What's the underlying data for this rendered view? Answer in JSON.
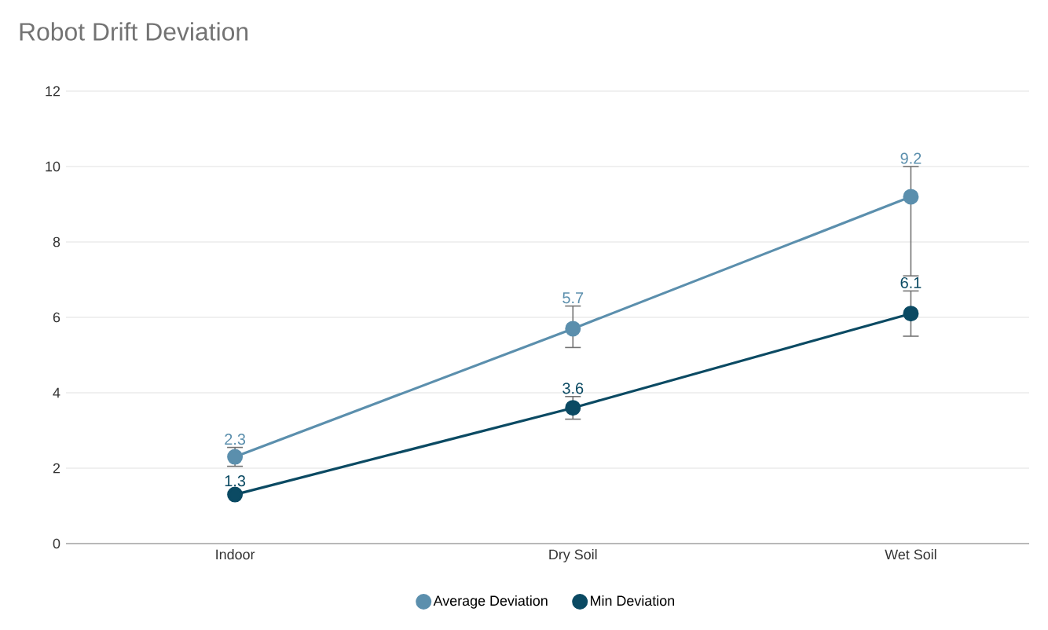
{
  "chart_data": {
    "type": "line",
    "title": "Robot Drift Deviation",
    "categories": [
      "Indoor",
      "Dry Soil",
      "Wet Soil"
    ],
    "series": [
      {
        "name": "Average Deviation",
        "color": "#5b8fad",
        "values": [
          2.3,
          5.7,
          9.2
        ],
        "errors": [
          0.25,
          [
            5.2,
            6.3
          ],
          [
            7.1,
            10.0
          ]
        ]
      },
      {
        "name": "Min Deviation",
        "color": "#0b4a63",
        "values": [
          1.3,
          3.6,
          6.1
        ],
        "errors": [
          null,
          [
            3.3,
            3.9
          ],
          [
            5.5,
            6.7
          ]
        ]
      }
    ],
    "ylim": [
      0,
      12
    ],
    "yticks": [
      0,
      2,
      4,
      6,
      8,
      10,
      12
    ],
    "grid": "y",
    "legend": "bottom",
    "marker": "circle",
    "line_style": "solid",
    "data_labels": true
  }
}
